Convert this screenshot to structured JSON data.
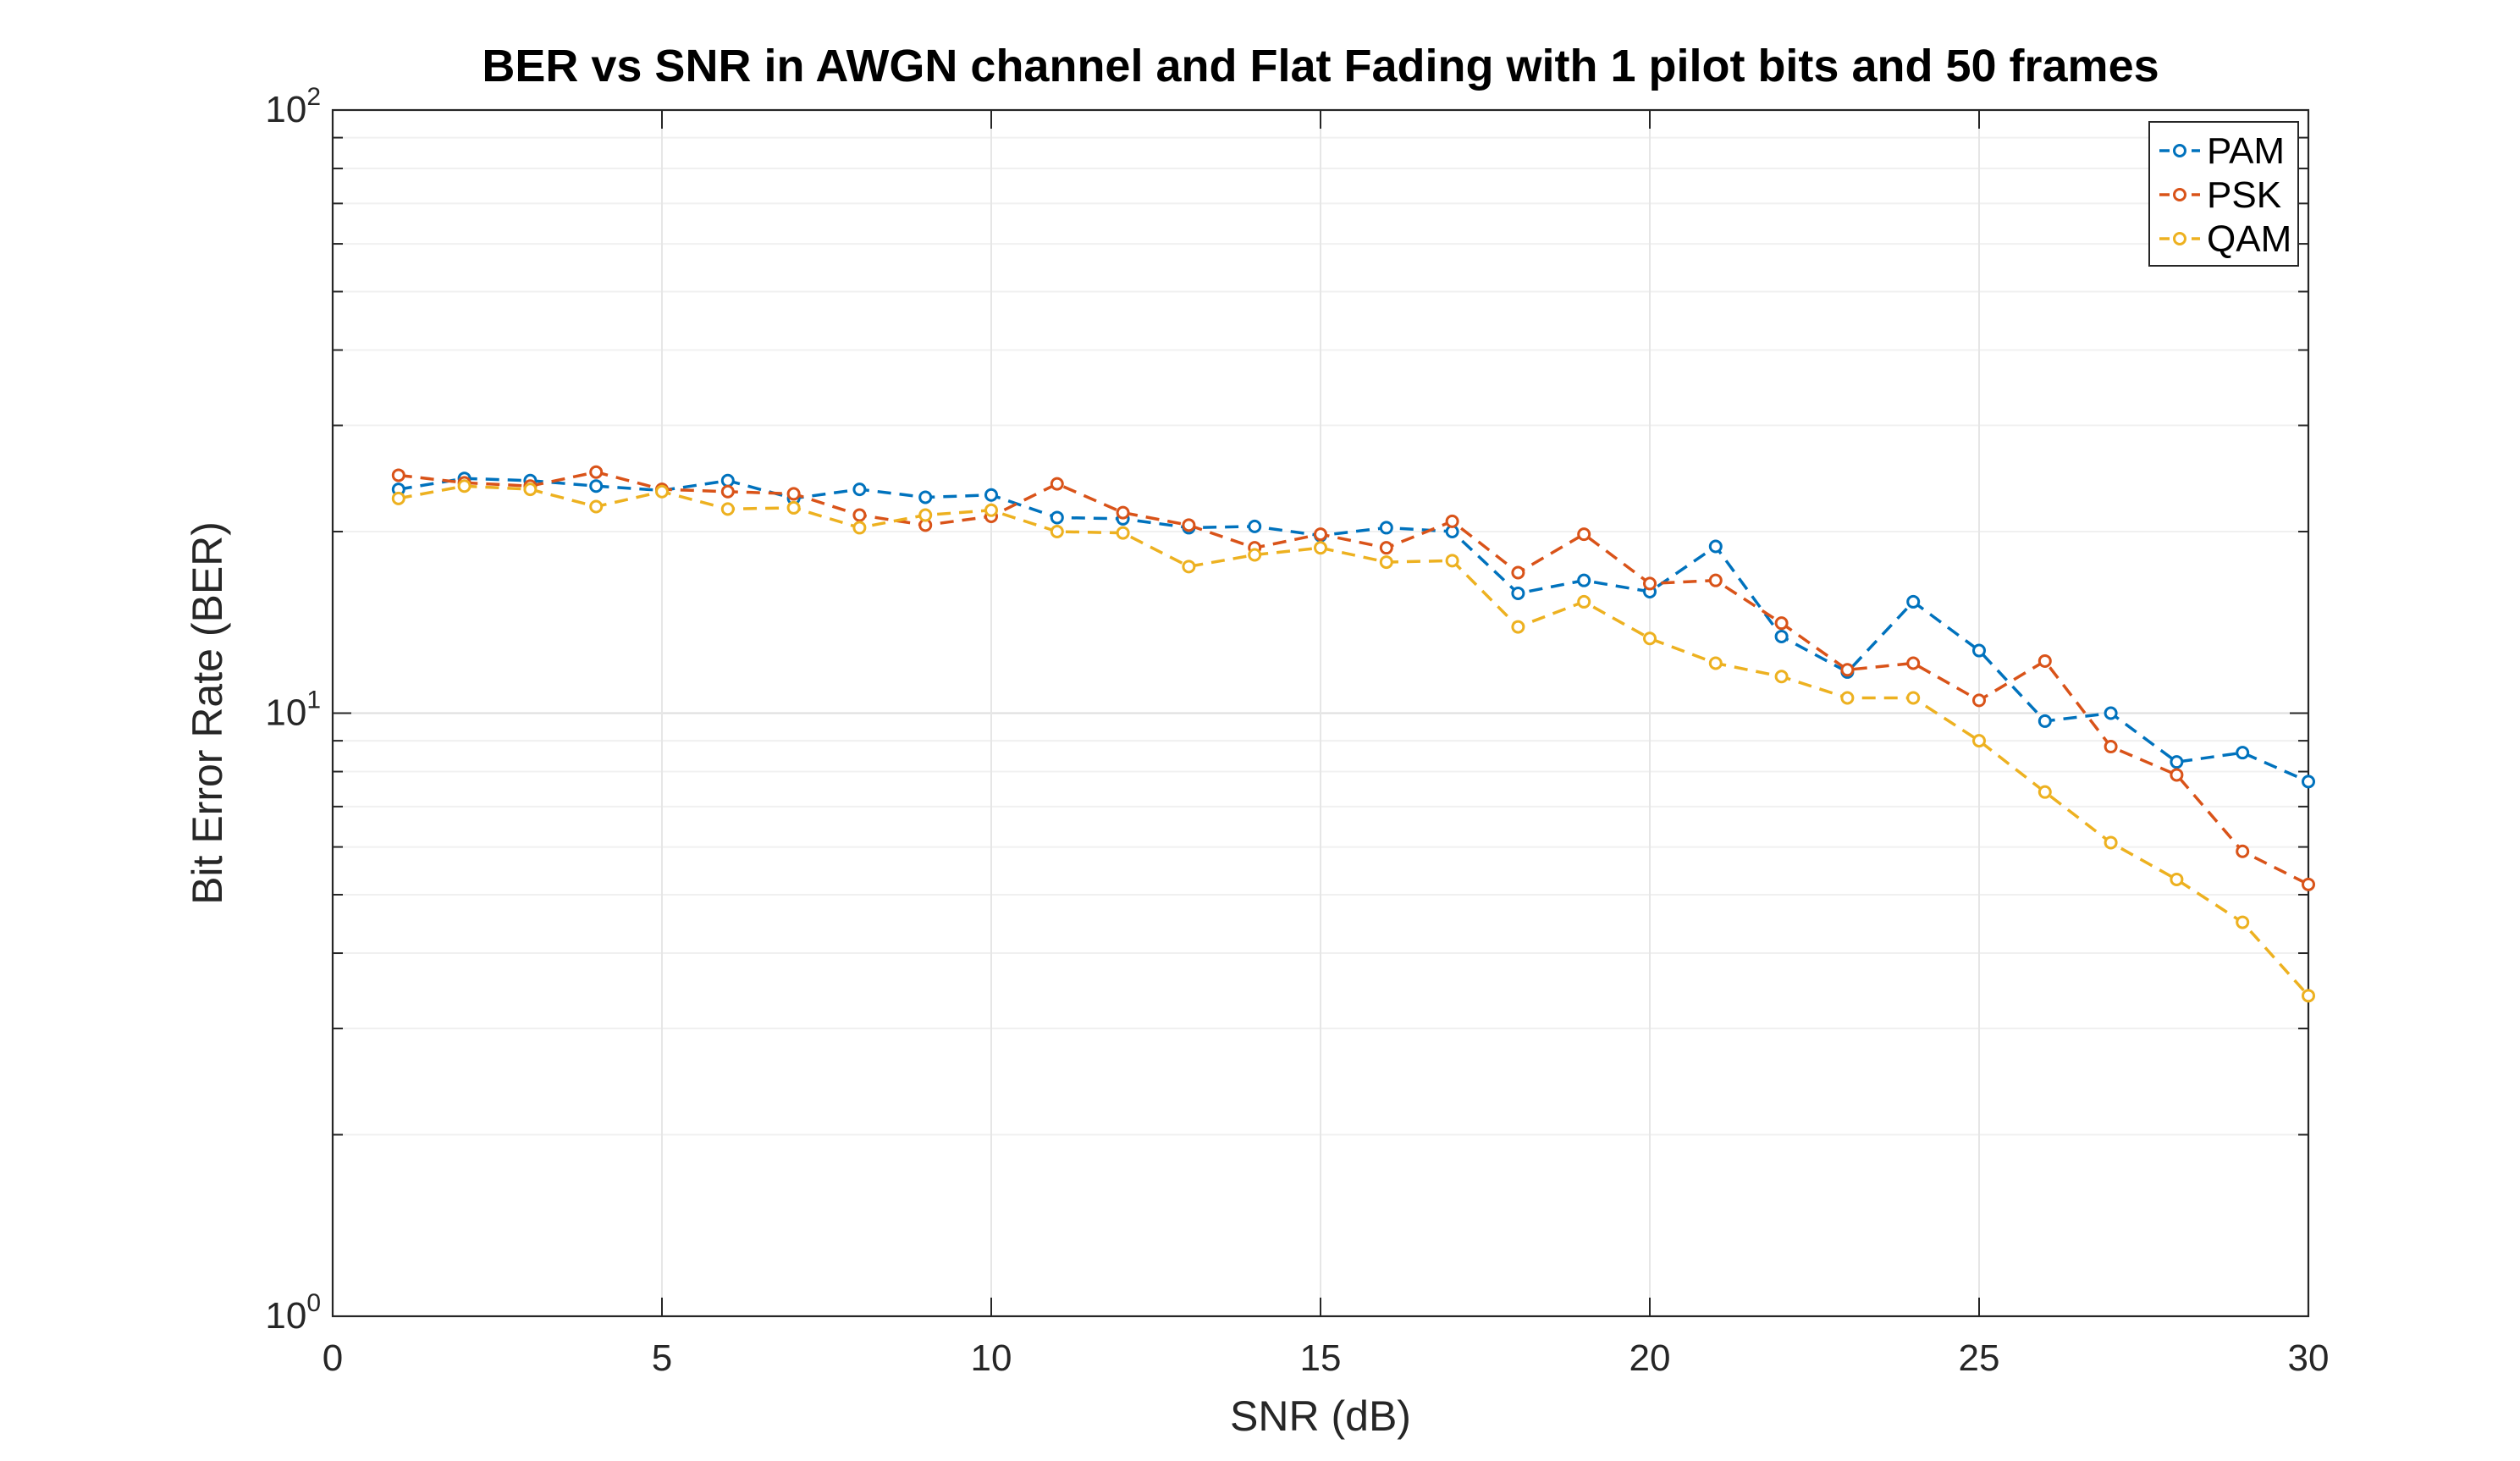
{
  "chart_data": {
    "type": "line",
    "title": "BER vs SNR in AWGN channel and Flat Fading with 1 pilot bits and 50 frames",
    "xlabel": "SNR (dB)",
    "ylabel": "Bit Error Rate (BER)",
    "xlim": [
      0,
      30
    ],
    "ylim": [
      1,
      100
    ],
    "yscale": "log",
    "grid": true,
    "legend_position": "top-right",
    "x_ticks": [
      "0",
      "5",
      "10",
      "15",
      "20",
      "25",
      "30"
    ],
    "y_ticks": [
      {
        "base": "10",
        "exp": "0"
      },
      {
        "base": "10",
        "exp": "1"
      },
      {
        "base": "10",
        "exp": "2"
      }
    ],
    "x": [
      1,
      2,
      3,
      4,
      5,
      6,
      7,
      8,
      9,
      10,
      11,
      12,
      13,
      14,
      15,
      16,
      17,
      18,
      19,
      20,
      21,
      22,
      23,
      24,
      25,
      26,
      27,
      28,
      29,
      30
    ],
    "series": [
      {
        "name": "PAM",
        "color": "#0072BD",
        "marker": "circle",
        "line_style": "dashed",
        "values": [
          23.5,
          24.5,
          24.3,
          23.8,
          23.4,
          24.3,
          22.7,
          23.5,
          22.8,
          23.0,
          21.1,
          21.0,
          20.3,
          20.4,
          19.7,
          20.3,
          20.0,
          15.8,
          16.6,
          15.9,
          18.9,
          13.4,
          11.7,
          15.3,
          12.7,
          9.7,
          10.0,
          8.3,
          8.6,
          7.7
        ]
      },
      {
        "name": "PSK",
        "color": "#D95319",
        "marker": "circle",
        "line_style": "dashed",
        "values": [
          24.8,
          24.1,
          23.8,
          25.1,
          23.5,
          23.3,
          23.1,
          21.3,
          20.5,
          21.2,
          24.0,
          21.5,
          20.5,
          18.8,
          19.8,
          18.8,
          20.8,
          17.1,
          19.8,
          16.4,
          16.6,
          14.1,
          11.8,
          12.1,
          10.5,
          12.2,
          8.8,
          7.9,
          5.9,
          5.2
        ]
      },
      {
        "name": "QAM",
        "color": "#EDB120",
        "marker": "circle",
        "line_style": "dashed",
        "values": [
          22.7,
          23.8,
          23.5,
          22.0,
          23.3,
          21.8,
          21.9,
          20.3,
          21.3,
          21.7,
          20.0,
          19.9,
          17.5,
          18.3,
          18.8,
          17.8,
          17.9,
          13.9,
          15.3,
          13.3,
          12.1,
          11.5,
          10.6,
          10.6,
          9.0,
          7.4,
          6.1,
          5.3,
          4.5,
          3.4
        ]
      }
    ]
  }
}
